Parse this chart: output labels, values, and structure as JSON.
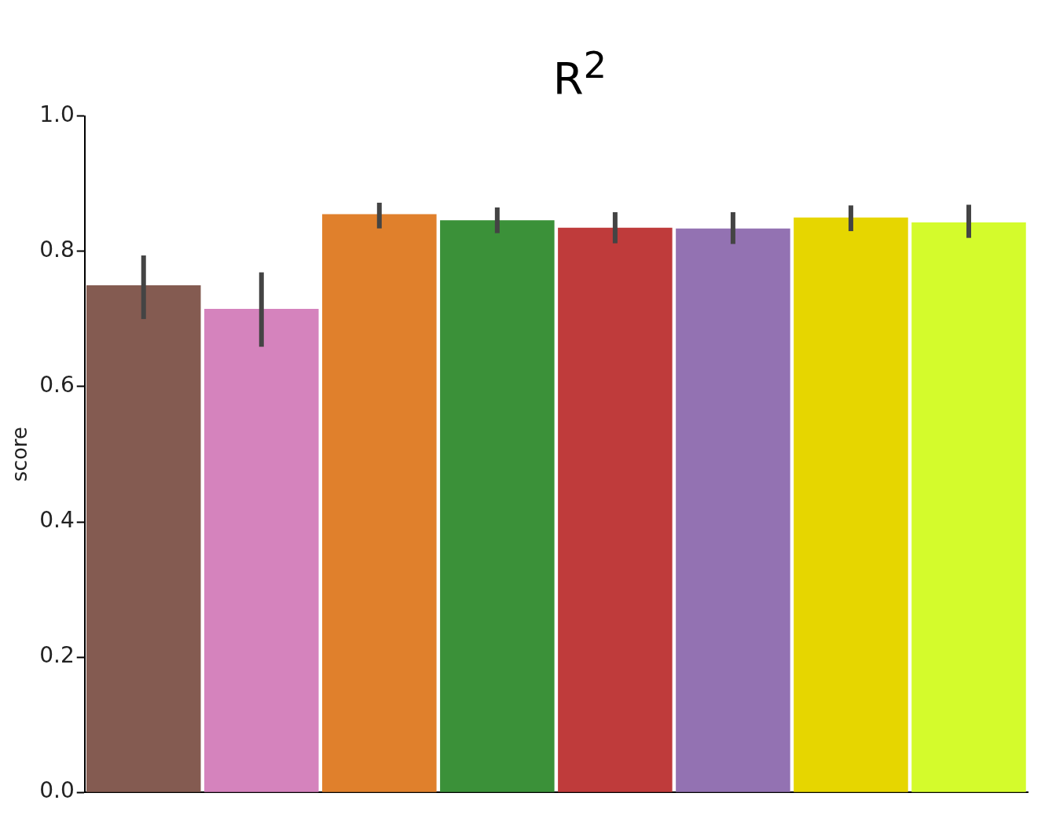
{
  "chart_data": {
    "type": "bar",
    "title": "R$^{2}$",
    "ylabel": "score",
    "categories": [
      null,
      null,
      null,
      null,
      null,
      null,
      null,
      null
    ],
    "values": [
      0.75,
      0.715,
      0.855,
      0.846,
      0.835,
      0.834,
      0.85,
      0.843
    ],
    "colors": [
      "#845b51",
      "#d583bd",
      "#e0802c",
      "#3b9139",
      "#bf3b3b",
      "#9372b2",
      "#e6d600",
      "#d4fb2c"
    ],
    "errors": [
      [
        0.7,
        0.794
      ],
      [
        0.659,
        0.769
      ],
      [
        0.834,
        0.872
      ],
      [
        0.827,
        0.865
      ],
      [
        0.812,
        0.858
      ],
      [
        0.811,
        0.858
      ],
      [
        0.83,
        0.868
      ],
      [
        0.82,
        0.869
      ]
    ],
    "ylim": [
      0,
      1
    ],
    "yticks": [
      {
        "value": 0,
        "label": "0.0"
      },
      0.2,
      0.4,
      0.6,
      0.8,
      {
        "value": 1,
        "label": "1.0"
      }
    ],
    "grid": false,
    "legend": false,
    "tick_labels": "y"
  }
}
